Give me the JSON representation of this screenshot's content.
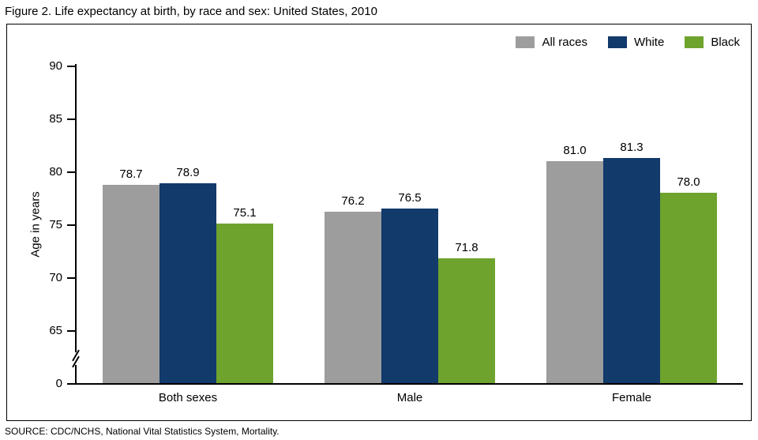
{
  "chart_data": {
    "type": "bar",
    "title": "Figure 2. Life expectancy at birth, by race and sex: United States, 2010",
    "categories": [
      "Both sexes",
      "Male",
      "Female"
    ],
    "series": [
      {
        "name": "All races",
        "color": "#9d9d9d",
        "values": [
          78.7,
          76.2,
          81.0
        ]
      },
      {
        "name": "White",
        "color": "#123a6b",
        "values": [
          78.9,
          76.5,
          81.3
        ]
      },
      {
        "name": "Black",
        "color": "#6ea32d",
        "values": [
          75.1,
          71.8,
          78.0
        ]
      }
    ],
    "ylabel": "Age in years",
    "xlabel": "",
    "yticks": [
      0,
      65,
      70,
      75,
      80,
      85,
      90
    ],
    "ylim": [
      0,
      90
    ],
    "axis_break_between": [
      0,
      65
    ],
    "value_labels_shown": true,
    "grid": false,
    "legend_position": "top-right",
    "source": "SOURCE: CDC/NCHS, National Vital Statistics System, Mortality."
  }
}
